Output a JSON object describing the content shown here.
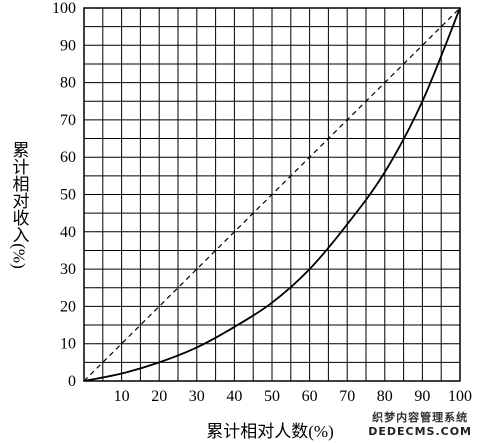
{
  "chart_data": {
    "type": "line",
    "xlabel": "累计相对人数(%)",
    "ylabel": "累计相对收入(%)",
    "xlim": [
      0,
      100
    ],
    "ylim": [
      0,
      100
    ],
    "x_ticks": [
      10,
      20,
      30,
      40,
      50,
      60,
      70,
      80,
      90,
      100
    ],
    "y_ticks": [
      0,
      10,
      20,
      30,
      40,
      50,
      60,
      70,
      80,
      90,
      100
    ],
    "grid": true,
    "grid_step": 5,
    "series": [
      {
        "style": "dashed",
        "x": [
          0,
          100
        ],
        "y": [
          0,
          100
        ]
      },
      {
        "style": "solid",
        "x": [
          0,
          10,
          20,
          30,
          40,
          50,
          60,
          70,
          80,
          90,
          100
        ],
        "y": [
          0,
          2,
          5,
          9,
          14.5,
          21,
          30,
          42,
          56,
          75,
          100
        ]
      }
    ]
  },
  "watermark": {
    "line1": "织梦内容管理系统",
    "line2": "DEDECMS.COM"
  }
}
